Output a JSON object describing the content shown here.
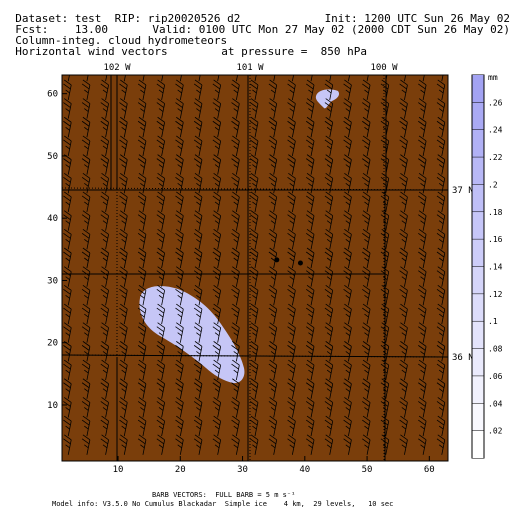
{
  "header": {
    "line1_left": "Dataset: test  RIP: rip20020526 d2",
    "line1_right": "Init: 1200 UTC Sun 26 May 02",
    "line2_left": "Fcst:    13.00",
    "line2_right": "Valid: 0100 UTC Mon 27 May 02 (2000 CDT Sun 26 May 02)",
    "line3": "Column-integ. cloud hydrometeors",
    "line4_left": "Horizontal wind vectors",
    "line4_right": "at pressure =  850 hPa"
  },
  "map": {
    "background_color": "#7a3e0b",
    "cloud_color": "#c6c6f6",
    "x_ticks": [
      "10",
      "20",
      "30",
      "40",
      "50",
      "60"
    ],
    "y_ticks": [
      "10",
      "20",
      "30",
      "40",
      "50",
      "60"
    ],
    "lon_labels": [
      "102 W",
      "101 W",
      "100 W"
    ],
    "lat_labels": [
      "37 N",
      "36 N"
    ],
    "grid_x_range": [
      1,
      63
    ],
    "grid_y_range": [
      1,
      63
    ],
    "markers": [
      {
        "x": 35.5,
        "y": 33.3
      },
      {
        "x": 39.3,
        "y": 32.8
      }
    ]
  },
  "colorbar": {
    "unit": "mm",
    "labels": [
      ".26",
      ".24",
      ".22",
      ".2",
      ".18",
      ".16",
      ".14",
      ".12",
      ".1",
      ".08",
      ".06",
      ".04",
      ".02"
    ]
  },
  "footer": {
    "line1": "BARB VECTORS:  FULL BARB = 5 m s⁻¹",
    "line2": "Model info: V3.5.0 No Cumulus Blackadar  Simple ice    4 km,  29 levels,   10 sec"
  }
}
